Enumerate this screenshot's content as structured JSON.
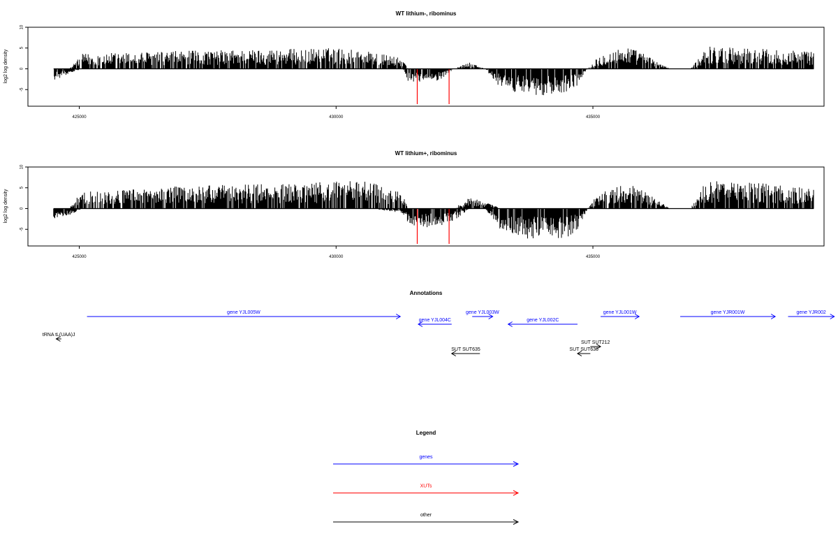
{
  "chart_data": [
    {
      "type": "bar",
      "title": "WT lithium-, ribominus",
      "ylabel": "log2 log density",
      "xlabel": "",
      "xlim": [
        424000,
        439500
      ],
      "ylim": [
        -9,
        10
      ],
      "y_ticks": [
        -5,
        0,
        5,
        10
      ],
      "x_ticks": [
        425000,
        430000,
        435000
      ],
      "x_tick_labels": [
        "425000",
        "430000",
        "435000"
      ],
      "bar_color": "#000000",
      "highlight_color": "#ff0000",
      "profile": {
        "x": [
          424500,
          424800,
          425050,
          426000,
          427000,
          428000,
          429000,
          430000,
          430700,
          431300,
          431400,
          431600,
          431800,
          432000,
          432300,
          432600,
          432900,
          433200,
          433500,
          433900,
          434200,
          434500,
          434700,
          434900,
          435100,
          435300,
          435700,
          436000,
          436500,
          436900,
          437200,
          437600,
          438000,
          438400,
          438800,
          439300
        ],
        "top": [
          0,
          0,
          3,
          3.3,
          3.6,
          3.8,
          4,
          4.2,
          3.5,
          2,
          0,
          0,
          0,
          0,
          0,
          1.5,
          0,
          0,
          0,
          0,
          0,
          0,
          0,
          0,
          2.5,
          3.5,
          4.5,
          3,
          0,
          0,
          4.5,
          4.5,
          4.2,
          4,
          3.8,
          3.5
        ],
        "bottom": [
          -2.5,
          -1,
          0,
          0,
          0,
          0,
          0,
          0,
          0,
          0,
          -2.5,
          -3,
          -2.5,
          -2.5,
          0,
          0,
          0,
          -4,
          -5,
          -5.5,
          -5.5,
          -5,
          -3.5,
          0,
          0,
          0,
          0,
          0,
          0,
          0,
          0,
          0,
          0,
          0,
          0,
          0
        ]
      },
      "highlights": [
        {
          "x": 431580,
          "y": -8.5
        },
        {
          "x": 432200,
          "y": -8.5
        }
      ]
    },
    {
      "type": "bar",
      "title": "WT lithium+, ribominus",
      "ylabel": "log2 log density",
      "xlabel": "",
      "xlim": [
        424000,
        439500
      ],
      "ylim": [
        -9,
        10
      ],
      "y_ticks": [
        -5,
        0,
        5,
        10
      ],
      "x_ticks": [
        425000,
        430000,
        435000
      ],
      "x_tick_labels": [
        "425000",
        "430000",
        "435000"
      ],
      "bar_color": "#000000",
      "highlight_color": "#ff0000",
      "profile": {
        "x": [
          424500,
          424800,
          425050,
          426000,
          427000,
          428000,
          429000,
          430000,
          430700,
          431300,
          431400,
          431600,
          431800,
          432000,
          432300,
          432600,
          432900,
          433200,
          433500,
          433900,
          434200,
          434500,
          434700,
          434900,
          435100,
          435300,
          435700,
          436000,
          436500,
          436900,
          437200,
          437600,
          438000,
          438400,
          438800,
          439300
        ],
        "top": [
          0,
          0,
          3.5,
          4,
          4.5,
          4.8,
          5,
          5.5,
          5.5,
          3,
          0,
          0,
          0,
          0,
          0,
          2.5,
          1.5,
          0,
          0,
          0,
          0,
          0,
          0,
          0,
          3,
          4,
          5,
          3.5,
          0,
          0,
          5.5,
          5.5,
          5.2,
          5,
          4.5,
          4
        ],
        "bottom": [
          -2.5,
          -1.5,
          0,
          0,
          0,
          0,
          0,
          0,
          0,
          -1,
          -3,
          -4,
          -4,
          -4,
          -2.5,
          0,
          0,
          -4.5,
          -6,
          -6.5,
          -6.5,
          -6,
          -4.5,
          0,
          0,
          0,
          0,
          0,
          0,
          0,
          0,
          0,
          0,
          0,
          0,
          0
        ]
      },
      "highlights": [
        {
          "x": 431580,
          "y": -8.5
        },
        {
          "x": 432200,
          "y": -8.5
        }
      ]
    },
    {
      "type": "annotation-track",
      "title": "Annotations",
      "xlim": [
        424000,
        439500
      ],
      "features": [
        {
          "label": "gene YJL005W",
          "start": 425150,
          "end": 431250,
          "strand": "+",
          "row": 0,
          "color": "#0000ff"
        },
        {
          "label": "gene YJL004C",
          "start": 431600,
          "end": 432250,
          "strand": "-",
          "row": 1,
          "color": "#0000ff"
        },
        {
          "label": "gene YJL003W",
          "start": 432650,
          "end": 433050,
          "strand": "+",
          "row": 0,
          "color": "#0000ff"
        },
        {
          "label": "gene YJL002C",
          "start": 433350,
          "end": 434700,
          "strand": "-",
          "row": 1,
          "color": "#0000ff"
        },
        {
          "label": "gene YJL001W",
          "start": 435150,
          "end": 435900,
          "strand": "+",
          "row": 0,
          "color": "#0000ff"
        },
        {
          "label": "gene YJR001W",
          "start": 436700,
          "end": 438550,
          "strand": "+",
          "row": 0,
          "color": "#0000ff"
        },
        {
          "label": "gene YJR002",
          "start": 438800,
          "end": 439700,
          "strand": "+",
          "row": 0,
          "color": "#0000ff"
        },
        {
          "label": "tRNA tL(UAA)J",
          "start": 424550,
          "end": 424650,
          "strand": "-",
          "row": 2,
          "color": "#000000"
        },
        {
          "label": "SUT SUT212",
          "start": 434950,
          "end": 435150,
          "strand": "+",
          "row": 3,
          "color": "#000000"
        },
        {
          "label": "SUT SUT635",
          "start": 432250,
          "end": 432800,
          "strand": "-",
          "row": 4,
          "color": "#000000"
        },
        {
          "label": "SUT SUT636",
          "start": 434700,
          "end": 434950,
          "strand": "-",
          "row": 4,
          "color": "#000000"
        }
      ]
    }
  ],
  "legend": {
    "title": "Legend",
    "items": [
      {
        "label": "genes",
        "color": "#0000ff"
      },
      {
        "label": "XUTs",
        "color": "#ff0000"
      },
      {
        "label": "other",
        "color": "#000000"
      }
    ]
  }
}
